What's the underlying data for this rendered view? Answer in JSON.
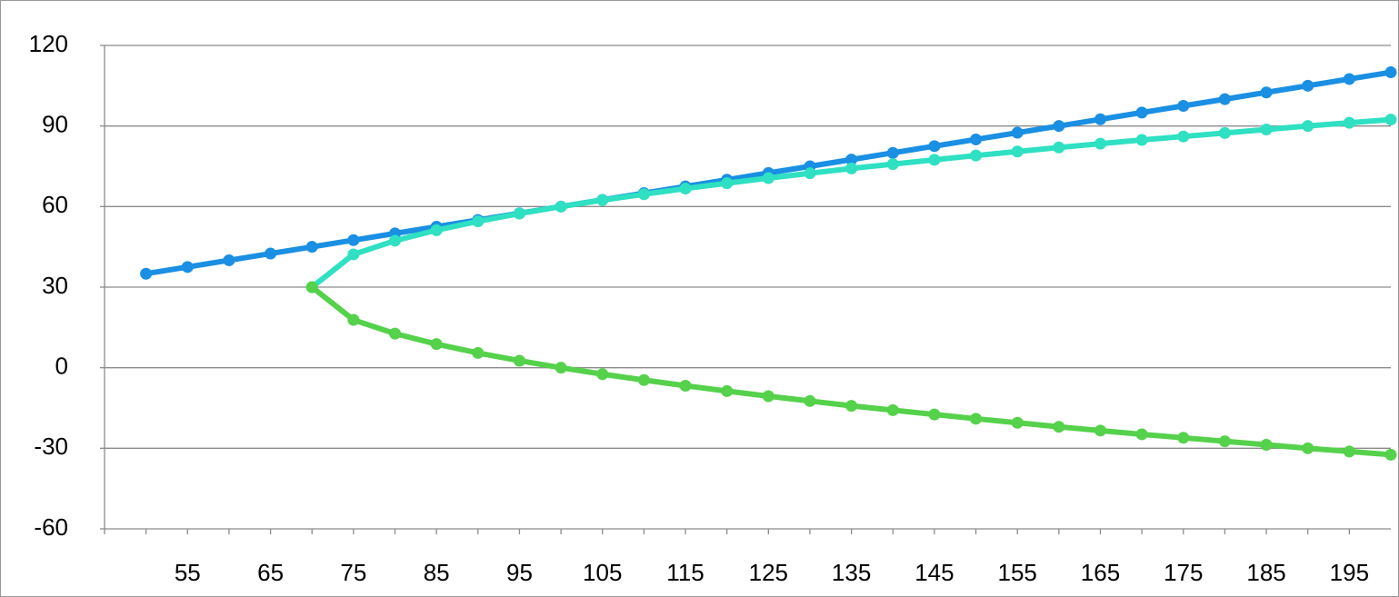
{
  "chart_data": {
    "type": "line",
    "categories": [
      null,
      "55",
      null,
      "65",
      null,
      "75",
      null,
      "85",
      null,
      "95",
      null,
      "105",
      null,
      "115",
      null,
      "125",
      null,
      "135",
      null,
      "145",
      null,
      "155",
      null,
      "165",
      null,
      "175",
      null,
      "185",
      null,
      "195",
      null
    ],
    "series": [
      {
        "color": "#1a8fe3",
        "values": [
          35,
          37.5,
          40,
          42.5,
          45,
          47.5,
          50,
          52.5,
          55,
          57.5,
          60,
          62.5,
          65,
          67.5,
          70,
          72.5,
          75,
          77.5,
          80,
          82.5,
          85,
          87.5,
          90,
          92.5,
          95,
          97.5,
          100,
          102.5,
          105,
          107.5,
          110
        ]
      },
      {
        "color": "#2fe0c2",
        "values": [
          null,
          null,
          null,
          null,
          30,
          42.2,
          47.3,
          51.2,
          54.5,
          57.4,
          60,
          62.4,
          64.6,
          66.7,
          68.7,
          70.6,
          72.4,
          74.2,
          75.8,
          77.4,
          79,
          80.5,
          82,
          83.4,
          84.8,
          86.1,
          87.4,
          88.7,
          90,
          91.2,
          92.4
        ]
      },
      {
        "color": "#55d14b",
        "values": [
          null,
          null,
          null,
          null,
          30,
          17.8,
          12.7,
          8.8,
          5.5,
          2.6,
          0,
          -2.4,
          -4.6,
          -6.7,
          -8.7,
          -10.6,
          -12.4,
          -14.2,
          -15.8,
          -17.4,
          -19,
          -20.5,
          -22,
          -23.4,
          -24.8,
          -26.1,
          -27.4,
          -28.7,
          -30,
          -31.2,
          -32.4
        ]
      }
    ],
    "ylim": [
      -60,
      120
    ],
    "yticks": [
      -60,
      -30,
      0,
      30,
      60,
      90,
      120
    ],
    "grid": true
  }
}
